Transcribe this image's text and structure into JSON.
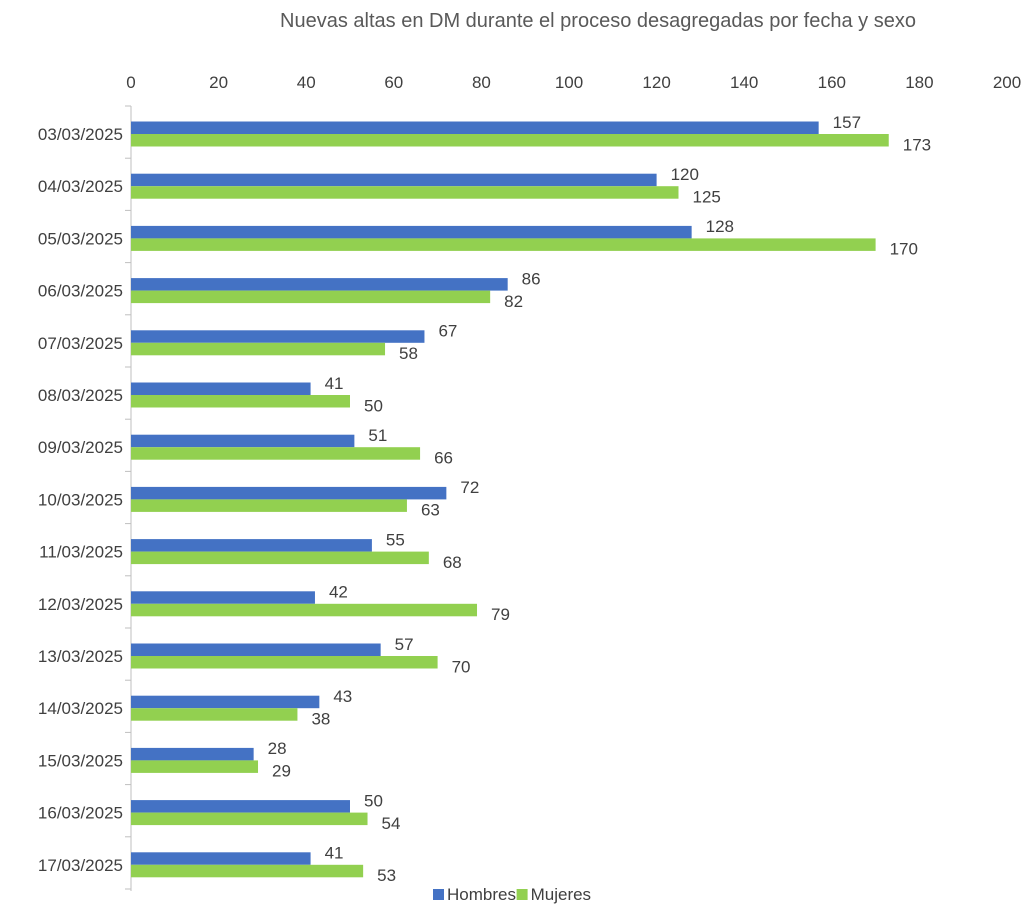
{
  "chart_data": {
    "type": "bar",
    "orientation": "horizontal",
    "title": "Nuevas altas en DM durante el proceso desagregadas por fecha y sexo",
    "xlabel": "",
    "ylabel": "",
    "xlim": [
      0,
      200
    ],
    "x_ticks": [
      0,
      20,
      40,
      60,
      80,
      100,
      120,
      140,
      160,
      180,
      200
    ],
    "x_axis_position": "top",
    "grid": false,
    "legend_position": "bottom",
    "categories": [
      "03/03/2025",
      "04/03/2025",
      "05/03/2025",
      "06/03/2025",
      "07/03/2025",
      "08/03/2025",
      "09/03/2025",
      "10/03/2025",
      "11/03/2025",
      "12/03/2025",
      "13/03/2025",
      "14/03/2025",
      "15/03/2025",
      "16/03/2025",
      "17/03/2025"
    ],
    "series": [
      {
        "name": "Hombres",
        "color": "#4472C4",
        "values": [
          157,
          120,
          128,
          86,
          67,
          41,
          51,
          72,
          55,
          42,
          57,
          43,
          28,
          50,
          41
        ]
      },
      {
        "name": "Mujeres",
        "color": "#92D050",
        "values": [
          173,
          125,
          170,
          82,
          58,
          50,
          66,
          63,
          68,
          79,
          70,
          38,
          29,
          54,
          53
        ]
      }
    ]
  }
}
